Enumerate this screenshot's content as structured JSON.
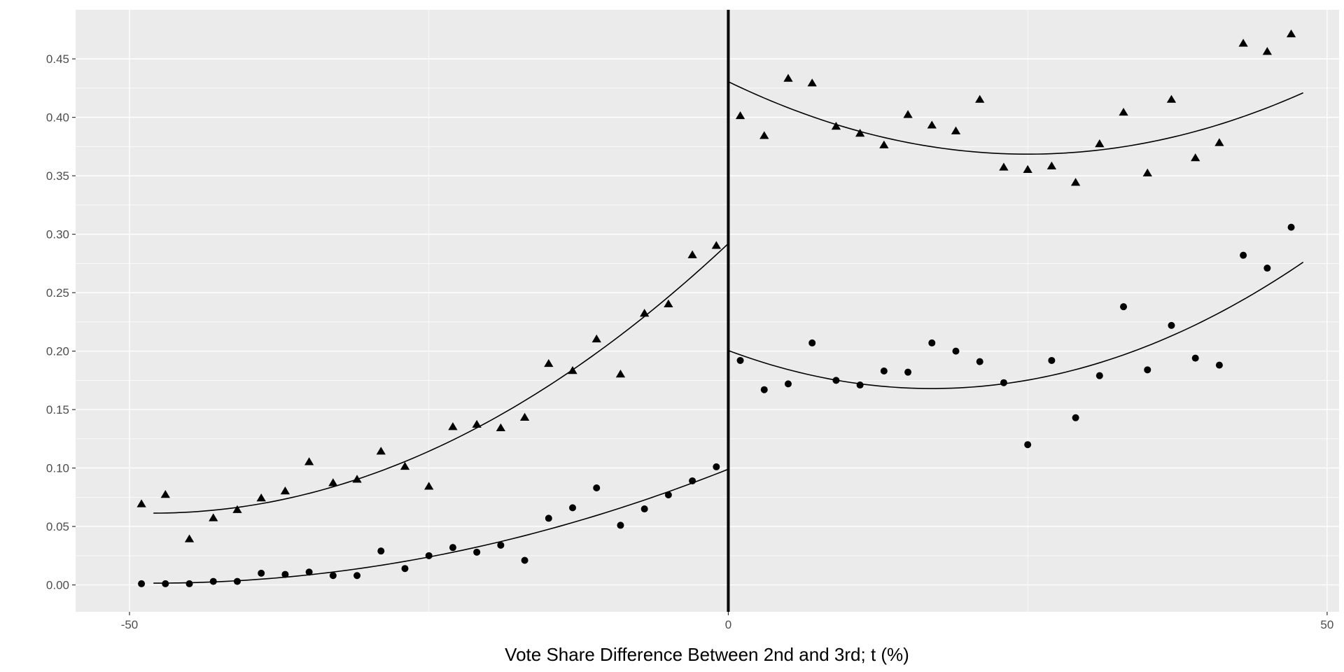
{
  "chart_data": {
    "type": "scatter",
    "title": "",
    "xlabel": "Vote Share Difference Between 2nd and 3rd; t (%)",
    "ylabel": "",
    "xlim": [
      -54.5,
      51
    ],
    "ylim": [
      -0.023,
      0.492
    ],
    "x_ticks": [
      -50,
      0,
      50
    ],
    "x_tick_labels": [
      "-50",
      "0",
      "50"
    ],
    "y_ticks": [
      0,
      0.05,
      0.1,
      0.15,
      0.2,
      0.25,
      0.3,
      0.35,
      0.4,
      0.45
    ],
    "y_tick_labels": [
      "0.00",
      "0.05",
      "0.10",
      "0.15",
      "0.20",
      "0.25",
      "0.30",
      "0.35",
      "0.40",
      "0.45"
    ],
    "grid": true,
    "background": "#ebebeb",
    "grid_color": "#ffffff",
    "mark_color": "#000000",
    "cutoff_line": {
      "x": 0
    },
    "series": [
      {
        "marker": "triangle",
        "points": [
          [
            -49,
            0.069
          ],
          [
            -47,
            0.077
          ],
          [
            -45,
            0.039
          ],
          [
            -43,
            0.057
          ],
          [
            -41,
            0.064
          ],
          [
            -39,
            0.074
          ],
          [
            -37,
            0.08
          ],
          [
            -35,
            0.105
          ],
          [
            -33,
            0.087
          ],
          [
            -31,
            0.09
          ],
          [
            -29,
            0.114
          ],
          [
            -27,
            0.101
          ],
          [
            -25,
            0.084
          ],
          [
            -23,
            0.135
          ],
          [
            -21,
            0.137
          ],
          [
            -19,
            0.134
          ],
          [
            -17,
            0.143
          ],
          [
            -15,
            0.189
          ],
          [
            -13,
            0.183
          ],
          [
            -11,
            0.21
          ],
          [
            -9,
            0.18
          ],
          [
            -7,
            0.232
          ],
          [
            -5,
            0.24
          ],
          [
            -3,
            0.282
          ],
          [
            -1,
            0.29
          ],
          [
            1,
            0.401
          ],
          [
            3,
            0.384
          ],
          [
            5,
            0.433
          ],
          [
            7,
            0.429
          ],
          [
            9,
            0.392
          ],
          [
            11,
            0.386
          ],
          [
            13,
            0.376
          ],
          [
            15,
            0.402
          ],
          [
            17,
            0.393
          ],
          [
            19,
            0.388
          ],
          [
            21,
            0.415
          ],
          [
            23,
            0.357
          ],
          [
            25,
            0.355
          ],
          [
            27,
            0.358
          ],
          [
            29,
            0.344
          ],
          [
            31,
            0.377
          ],
          [
            33,
            0.404
          ],
          [
            35,
            0.352
          ],
          [
            37,
            0.415
          ],
          [
            39,
            0.365
          ],
          [
            41,
            0.378
          ],
          [
            43,
            0.463
          ],
          [
            45,
            0.456
          ],
          [
            47,
            0.471
          ]
        ],
        "fit_left": [
          -48,
          0.0614,
          -48,
          0,
          0.292
        ],
        "fit_right": [
          0,
          0.4305,
          25,
          0.3685,
          48,
          0.453
        ]
      },
      {
        "marker": "circle",
        "points": [
          [
            -49,
            0.001
          ],
          [
            -47,
            0.001
          ],
          [
            -45,
            0.001
          ],
          [
            -43,
            0.003
          ],
          [
            -41,
            0.003
          ],
          [
            -39,
            0.01
          ],
          [
            -37,
            0.009
          ],
          [
            -35,
            0.011
          ],
          [
            -33,
            0.008
          ],
          [
            -31,
            0.008
          ],
          [
            -29,
            0.029
          ],
          [
            -27,
            0.014
          ],
          [
            -25,
            0.025
          ],
          [
            -23,
            0.032
          ],
          [
            -21,
            0.028
          ],
          [
            -19,
            0.034
          ],
          [
            -17,
            0.021
          ],
          [
            -15,
            0.057
          ],
          [
            -13,
            0.066
          ],
          [
            -11,
            0.083
          ],
          [
            -9,
            0.051
          ],
          [
            -7,
            0.065
          ],
          [
            -5,
            0.077
          ],
          [
            -3,
            0.089
          ],
          [
            -1,
            0.101
          ],
          [
            1,
            0.192
          ],
          [
            3,
            0.167
          ],
          [
            5,
            0.172
          ],
          [
            7,
            0.207
          ],
          [
            9,
            0.175
          ],
          [
            11,
            0.171
          ],
          [
            13,
            0.183
          ],
          [
            15,
            0.182
          ],
          [
            17,
            0.207
          ],
          [
            19,
            0.2
          ],
          [
            21,
            0.191
          ],
          [
            23,
            0.173
          ],
          [
            25,
            0.12
          ],
          [
            27,
            0.192
          ],
          [
            29,
            0.143
          ],
          [
            31,
            0.179
          ],
          [
            33,
            0.238
          ],
          [
            35,
            0.184
          ],
          [
            37,
            0.222
          ],
          [
            39,
            0.194
          ],
          [
            41,
            0.188
          ],
          [
            43,
            0.282
          ],
          [
            45,
            0.271
          ],
          [
            47,
            0.306
          ]
        ],
        "fit_left": [
          -48,
          0.0015,
          -48,
          0,
          0.099
        ],
        "fit_right": [
          0,
          0.2005,
          17,
          0.168,
          48,
          0.2785
        ]
      }
    ]
  }
}
